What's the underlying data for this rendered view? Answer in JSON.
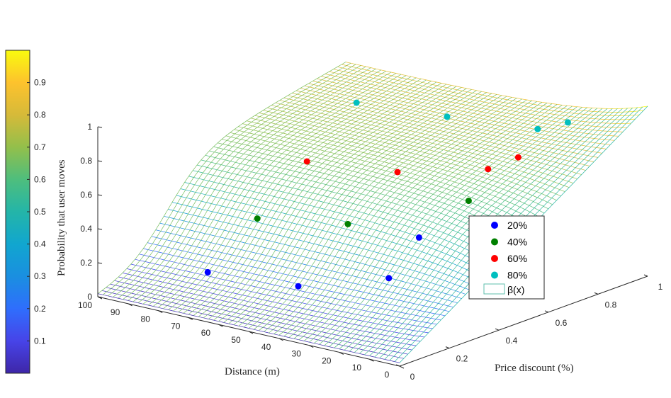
{
  "chart_data": {
    "type": "surface",
    "zlabel": "Probability that user moves",
    "xlabel": "Distance (m)",
    "ylabel": "Price discount (%)",
    "x_range": [
      0,
      100
    ],
    "y_range": [
      0,
      1
    ],
    "z_range": [
      0,
      1
    ],
    "x_ticks": [
      "0",
      "10",
      "20",
      "30",
      "40",
      "50",
      "60",
      "70",
      "80",
      "90",
      "100"
    ],
    "y_ticks": [
      "0",
      "0.2",
      "0.4",
      "0.6",
      "0.8",
      "1"
    ],
    "z_ticks": [
      "0",
      "0.2",
      "0.4",
      "0.6",
      "0.8",
      "1"
    ],
    "colorbar_ticks": [
      "0.1",
      "0.2",
      "0.3",
      "0.4",
      "0.5",
      "0.6",
      "0.7",
      "0.8",
      "0.9"
    ],
    "colorbar_range": [
      0,
      1
    ],
    "surface_name": "β(x)",
    "series": [
      {
        "name": "20%",
        "color": "#0000ff",
        "discount": 0.2,
        "points": [
          {
            "distance": 80,
            "value": 0.12
          },
          {
            "distance": 50,
            "value": 0.16
          },
          {
            "distance": 20,
            "value": 0.33
          },
          {
            "distance": 10,
            "value": 0.61
          }
        ]
      },
      {
        "name": "40%",
        "color": "#008000",
        "discount": 0.4,
        "points": [
          {
            "distance": 80,
            "value": 0.33
          },
          {
            "distance": 50,
            "value": 0.42
          },
          {
            "distance": 10,
            "value": 0.72
          }
        ]
      },
      {
        "name": "60%",
        "color": "#ff0000",
        "discount": 0.6,
        "points": [
          {
            "distance": 80,
            "value": 0.56
          },
          {
            "distance": 50,
            "value": 0.62
          },
          {
            "distance": 20,
            "value": 0.76
          },
          {
            "distance": 10,
            "value": 0.87
          }
        ]
      },
      {
        "name": "80%",
        "color": "#00bfbf",
        "discount": 0.8,
        "points": [
          {
            "distance": 80,
            "value": 0.8
          },
          {
            "distance": 50,
            "value": 0.84
          },
          {
            "distance": 20,
            "value": 0.89
          },
          {
            "distance": 10,
            "value": 0.97
          }
        ]
      }
    ],
    "legend": [
      "20%",
      "40%",
      "60%",
      "80%",
      "β(x)"
    ],
    "legend_position": "right",
    "colormap": "parula",
    "grid": false
  },
  "surface_legend_label": "β(x)"
}
